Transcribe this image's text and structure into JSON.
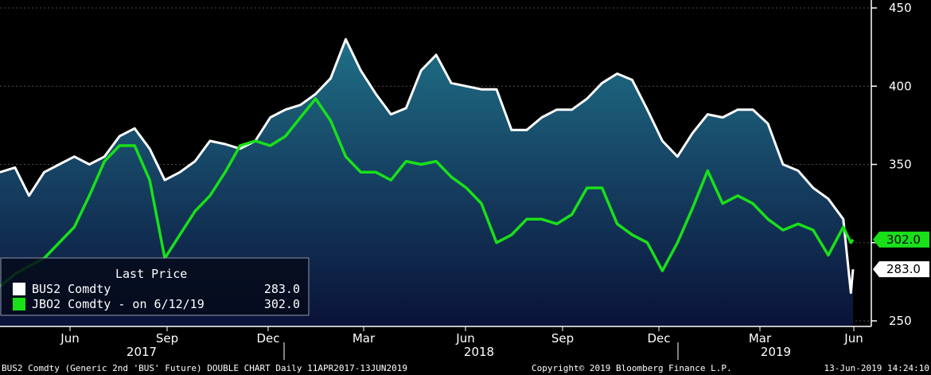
{
  "chart_data": {
    "type": "line",
    "title": "",
    "yaxis": {
      "ticks": [
        250,
        300,
        350,
        400,
        450
      ],
      "tick_labels": [
        "250",
        "",
        "350",
        "400",
        "450"
      ],
      "ylim": [
        245,
        455
      ],
      "side": "right"
    },
    "xaxis": {
      "month_labels": [
        "Jun",
        "Sep",
        "Dec",
        "Mar",
        "Jun",
        "Sep",
        "Dec",
        "Mar",
        "Jun"
      ],
      "year_labels": [
        "2017",
        "2018",
        "2019"
      ]
    },
    "legend": {
      "header": "Last Price",
      "placement": "bottom-left",
      "entries": [
        {
          "name": "BUS2 Comdty",
          "value": "283.0",
          "color": "#ffffff"
        },
        {
          "name": "JBO2 Comdty -  on 6/12/19",
          "value": "302.0",
          "color": "#19e019"
        }
      ]
    },
    "last_value_labels": [
      {
        "text": "302.0",
        "value": 302.0,
        "color": "#19e019"
      },
      {
        "text": "283.0",
        "value": 283.0,
        "color": "#ffffff"
      }
    ],
    "series": [
      {
        "name": "BUS2 Comdty",
        "color": "#ffffff",
        "area_fill": true,
        "x": [
          "2017-04-11",
          "2017-04-25",
          "2017-05-08",
          "2017-05-22",
          "2017-06-05",
          "2017-06-19",
          "2017-07-03",
          "2017-07-17",
          "2017-07-31",
          "2017-08-14",
          "2017-08-28",
          "2017-09-11",
          "2017-09-25",
          "2017-10-09",
          "2017-10-23",
          "2017-11-06",
          "2017-11-20",
          "2017-12-04",
          "2017-12-18",
          "2018-01-01",
          "2018-01-15",
          "2018-01-29",
          "2018-02-12",
          "2018-02-26",
          "2018-03-12",
          "2018-03-26",
          "2018-04-09",
          "2018-04-23",
          "2018-05-07",
          "2018-05-21",
          "2018-06-04",
          "2018-06-18",
          "2018-07-02",
          "2018-07-16",
          "2018-07-30",
          "2018-08-13",
          "2018-08-27",
          "2018-09-10",
          "2018-09-24",
          "2018-10-08",
          "2018-10-22",
          "2018-11-05",
          "2018-11-19",
          "2018-12-03",
          "2018-12-17",
          "2018-12-31",
          "2019-01-14",
          "2019-01-28",
          "2019-02-11",
          "2019-02-25",
          "2019-03-11",
          "2019-03-25",
          "2019-04-08",
          "2019-04-22",
          "2019-05-06",
          "2019-05-20",
          "2019-06-03",
          "2019-06-10",
          "2019-06-12"
        ],
        "values": [
          345,
          348,
          330,
          345,
          350,
          355,
          350,
          355,
          368,
          373,
          360,
          340,
          345,
          352,
          365,
          363,
          360,
          365,
          380,
          385,
          388,
          395,
          405,
          430,
          410,
          395,
          382,
          386,
          410,
          420,
          402,
          400,
          398,
          398,
          372,
          372,
          380,
          385,
          385,
          392,
          402,
          408,
          404,
          385,
          365,
          355,
          370,
          382,
          380,
          385,
          385,
          376,
          350,
          346,
          335,
          328,
          315,
          268,
          283
        ]
      },
      {
        "name": "JBO2 Comdty",
        "color": "#19e019",
        "area_fill": false,
        "x": [
          "2017-04-11",
          "2017-04-25",
          "2017-05-08",
          "2017-05-22",
          "2017-06-05",
          "2017-06-19",
          "2017-07-03",
          "2017-07-17",
          "2017-07-31",
          "2017-08-14",
          "2017-08-28",
          "2017-09-11",
          "2017-09-25",
          "2017-10-09",
          "2017-10-23",
          "2017-11-06",
          "2017-11-20",
          "2017-12-04",
          "2017-12-18",
          "2018-01-01",
          "2018-01-15",
          "2018-01-29",
          "2018-02-12",
          "2018-02-26",
          "2018-03-12",
          "2018-03-26",
          "2018-04-09",
          "2018-04-23",
          "2018-05-07",
          "2018-05-21",
          "2018-06-04",
          "2018-06-18",
          "2018-07-02",
          "2018-07-16",
          "2018-07-30",
          "2018-08-13",
          "2018-08-27",
          "2018-09-10",
          "2018-09-24",
          "2018-10-08",
          "2018-10-22",
          "2018-11-05",
          "2018-11-19",
          "2018-12-03",
          "2018-12-17",
          "2018-12-31",
          "2019-01-14",
          "2019-01-28",
          "2019-02-11",
          "2019-02-25",
          "2019-03-11",
          "2019-03-25",
          "2019-04-08",
          "2019-04-22",
          "2019-05-06",
          "2019-05-20",
          "2019-06-03",
          "2019-06-10",
          "2019-06-12"
        ],
        "values": [
          272,
          280,
          285,
          290,
          300,
          310,
          330,
          352,
          362,
          362,
          340,
          290,
          305,
          320,
          330,
          345,
          362,
          365,
          362,
          368,
          380,
          392,
          378,
          355,
          345,
          345,
          340,
          352,
          350,
          352,
          342,
          335,
          325,
          300,
          305,
          315,
          315,
          312,
          318,
          335,
          335,
          312,
          305,
          300,
          282,
          300,
          322,
          346,
          325,
          330,
          325,
          315,
          308,
          312,
          308,
          292,
          310,
          300,
          302
        ]
      }
    ],
    "footer": {
      "left": "BUS2 Comdty (Generic 2nd 'BUS' Future) DOUBLE CHART  Daily 11APR2017-13JUN2019",
      "center": "Copyright© 2019 Bloomberg Finance L.P.",
      "right": "13-Jun-2019 14:24:10"
    }
  }
}
